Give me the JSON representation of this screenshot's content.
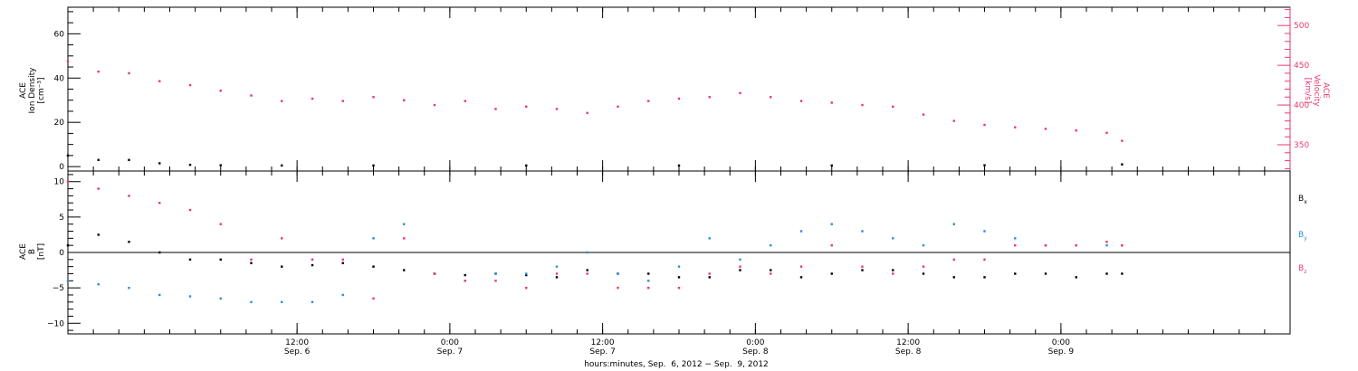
{
  "chart_data": [
    {
      "type": "scatter",
      "panel": "top",
      "ylabel_left": [
        "ACE",
        "Ion Density",
        "[cm⁻³]"
      ],
      "ylabel_right": [
        "ACE",
        "Velocity",
        "[km/s]"
      ],
      "ylim_left": [
        -2,
        72
      ],
      "ylim_right": [
        317,
        523
      ],
      "yticks_left": [
        "0",
        "20",
        "40",
        "60"
      ],
      "yticks_left_values": [
        0,
        20,
        40,
        60
      ],
      "yticks_right": [
        "350",
        "400",
        "450",
        "500"
      ],
      "yticks_right_values": [
        350,
        400,
        450,
        500
      ],
      "series": [
        {
          "axis": "right",
          "color": "#e8396b",
          "x": [
            0.0,
            0.1,
            0.2,
            0.3,
            0.4,
            0.5,
            0.6,
            0.7,
            0.8,
            0.9,
            1.0,
            1.1,
            1.2,
            1.3,
            1.4,
            1.5,
            1.6,
            1.7,
            1.8,
            1.9,
            2.0,
            2.1,
            2.2,
            2.3,
            2.4,
            2.5,
            2.6,
            2.7,
            2.8,
            2.9,
            3.0,
            3.1,
            3.2,
            3.3,
            3.4,
            3.45
          ],
          "y": [
            455,
            442,
            440,
            430,
            425,
            418,
            412,
            405,
            408,
            405,
            410,
            406,
            400,
            405,
            395,
            398,
            395,
            390,
            398,
            405,
            408,
            410,
            415,
            410,
            405,
            403,
            400,
            398,
            388,
            380,
            375,
            372,
            370,
            368,
            365,
            355
          ]
        },
        {
          "axis": "left",
          "color": "#000000",
          "x": [
            0.0,
            0.1,
            0.2,
            0.3,
            0.4,
            0.5,
            0.7,
            1.0,
            1.5,
            2.0,
            2.5,
            3.0,
            3.45
          ],
          "y": [
            5,
            3,
            3,
            1.5,
            0.8,
            0.6,
            0.5,
            0.5,
            0.5,
            0.5,
            0.5,
            0.6,
            1
          ]
        }
      ]
    },
    {
      "type": "scatter",
      "panel": "bottom",
      "ylabel": [
        "ACE",
        "B",
        "[nT]"
      ],
      "ylim": [
        -11.5,
        11.5
      ],
      "yticks": [
        "−10",
        "−5",
        "0",
        "5",
        "10"
      ],
      "yticks_values": [
        -10,
        -5,
        0,
        5,
        10
      ],
      "zero_line": true,
      "legend": "right",
      "series": [
        {
          "name": "Bx",
          "legend_main": "B",
          "legend_sub": "x",
          "color": "#000000",
          "x": [
            0.0,
            0.1,
            0.2,
            0.3,
            0.4,
            0.5,
            0.6,
            0.7,
            0.8,
            0.9,
            1.0,
            1.1,
            1.2,
            1.3,
            1.4,
            1.5,
            1.6,
            1.7,
            1.8,
            1.9,
            2.0,
            2.1,
            2.2,
            2.3,
            2.4,
            2.5,
            2.6,
            2.7,
            2.8,
            2.9,
            3.0,
            3.1,
            3.2,
            3.3,
            3.4,
            3.45
          ],
          "y": [
            1,
            2.5,
            1.5,
            0,
            -1,
            -1,
            -1.5,
            -2,
            -1.8,
            -1.5,
            -2,
            -2.5,
            -3,
            -3.2,
            -3,
            -3.2,
            -3.5,
            -2.5,
            -3,
            -3,
            -3.5,
            -3.5,
            -2.5,
            -2.5,
            -3.5,
            -3,
            -2.5,
            -2.5,
            -3,
            -3.5,
            -3.5,
            -3,
            -3,
            -3.5,
            -3,
            -3
          ]
        },
        {
          "name": "By",
          "legend_main": "B",
          "legend_sub": "y",
          "color": "#2b8ce0",
          "x": [
            0.0,
            0.1,
            0.2,
            0.3,
            0.4,
            0.5,
            0.6,
            0.7,
            0.8,
            0.9,
            1.0,
            1.1,
            1.2,
            1.3,
            1.4,
            1.5,
            1.6,
            1.7,
            1.8,
            1.9,
            2.0,
            2.1,
            2.2,
            2.3,
            2.4,
            2.5,
            2.6,
            2.7,
            2.8,
            2.9,
            3.0,
            3.1,
            3.2,
            3.3,
            3.4,
            3.45
          ],
          "y": [
            -4,
            -4.5,
            -5,
            -6,
            -6.2,
            -6.5,
            -7,
            -7,
            -7,
            -6,
            2,
            4,
            -3,
            -4,
            -3,
            -3,
            -2,
            0,
            -3,
            -4,
            -2,
            2,
            -1,
            1,
            3,
            4,
            3,
            2,
            1,
            4,
            3,
            2,
            1,
            1,
            1,
            1
          ]
        },
        {
          "name": "Bz",
          "legend_main": "B",
          "legend_sub": "z",
          "color": "#e8396b",
          "x": [
            0.0,
            0.1,
            0.2,
            0.3,
            0.4,
            0.5,
            0.6,
            0.7,
            0.8,
            0.9,
            1.0,
            1.1,
            1.2,
            1.3,
            1.4,
            1.5,
            1.6,
            1.7,
            1.8,
            1.9,
            2.0,
            2.1,
            2.2,
            2.3,
            2.4,
            2.5,
            2.6,
            2.7,
            2.8,
            2.9,
            3.0,
            3.1,
            3.2,
            3.3,
            3.4,
            3.45
          ],
          "y": [
            10,
            9,
            8,
            7,
            6,
            4,
            -1,
            2,
            -1,
            -1,
            -6.5,
            2,
            -3,
            -4,
            -4,
            -5,
            -3,
            -3,
            -5,
            -5,
            -5,
            -3,
            -2,
            -3,
            -2,
            1,
            -2,
            -3,
            -2,
            -1,
            -1,
            1,
            1,
            1,
            1.5,
            1
          ]
        }
      ]
    }
  ],
  "x_axis": {
    "xlim": [
      0,
      4.0
    ],
    "ticks": [
      {
        "x": 0.75,
        "time": "12:00",
        "date": "Sep. 6"
      },
      {
        "x": 1.25,
        "time": "0:00",
        "date": "Sep. 7"
      },
      {
        "x": 1.75,
        "time": "12:00",
        "date": "Sep. 7"
      },
      {
        "x": 2.25,
        "time": "0:00",
        "date": "Sep. 8"
      },
      {
        "x": 2.75,
        "time": "12:00",
        "date": "Sep. 8"
      },
      {
        "x": 3.25,
        "time": "0:00",
        "date": "Sep. 9"
      }
    ],
    "label": "hours:minutes, Sep.  6, 2012 − Sep.  9, 2012"
  }
}
